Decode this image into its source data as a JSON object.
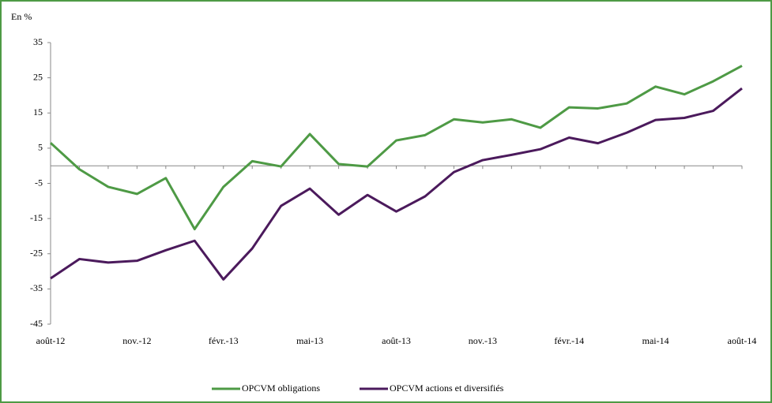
{
  "chart_data": {
    "type": "line",
    "y_label": "En %",
    "categories": [
      "août-12",
      null,
      null,
      "nov.-12",
      null,
      null,
      "févr.-13",
      null,
      null,
      "mai-13",
      null,
      null,
      "août-13",
      null,
      null,
      "nov.-13",
      null,
      null,
      "févr.-14",
      null,
      null,
      "mai-14",
      null,
      null,
      "août-14"
    ],
    "series": [
      {
        "name": "OPCVM obligations",
        "color": "#4e9a45",
        "values": [
          6.5,
          -1,
          -6,
          -8,
          -3.5,
          -18,
          -6,
          1.3,
          -0.2,
          9,
          0.5,
          -0.2,
          7.2,
          8.7,
          13.2,
          12.3,
          13.2,
          10.8,
          16.6,
          16.3,
          17.7,
          22.5,
          20.3,
          24,
          28.4
        ]
      },
      {
        "name": "OPCVM actions et diversifiés",
        "color": "#4b1a5c",
        "values": [
          -32,
          -26.5,
          -27.5,
          -27,
          -24,
          -21.3,
          -32.3,
          -23.5,
          -11.4,
          -6.5,
          -13.9,
          -8.3,
          -13,
          -8.7,
          -1.8,
          1.6,
          3.1,
          4.7,
          8,
          6.4,
          9.4,
          13,
          13.6,
          15.6,
          22
        ]
      }
    ],
    "ylim": [
      -45,
      35
    ],
    "yticks": [
      -45,
      -35,
      -25,
      -15,
      -5,
      5,
      15,
      25,
      35
    ],
    "legend": "bottom"
  }
}
